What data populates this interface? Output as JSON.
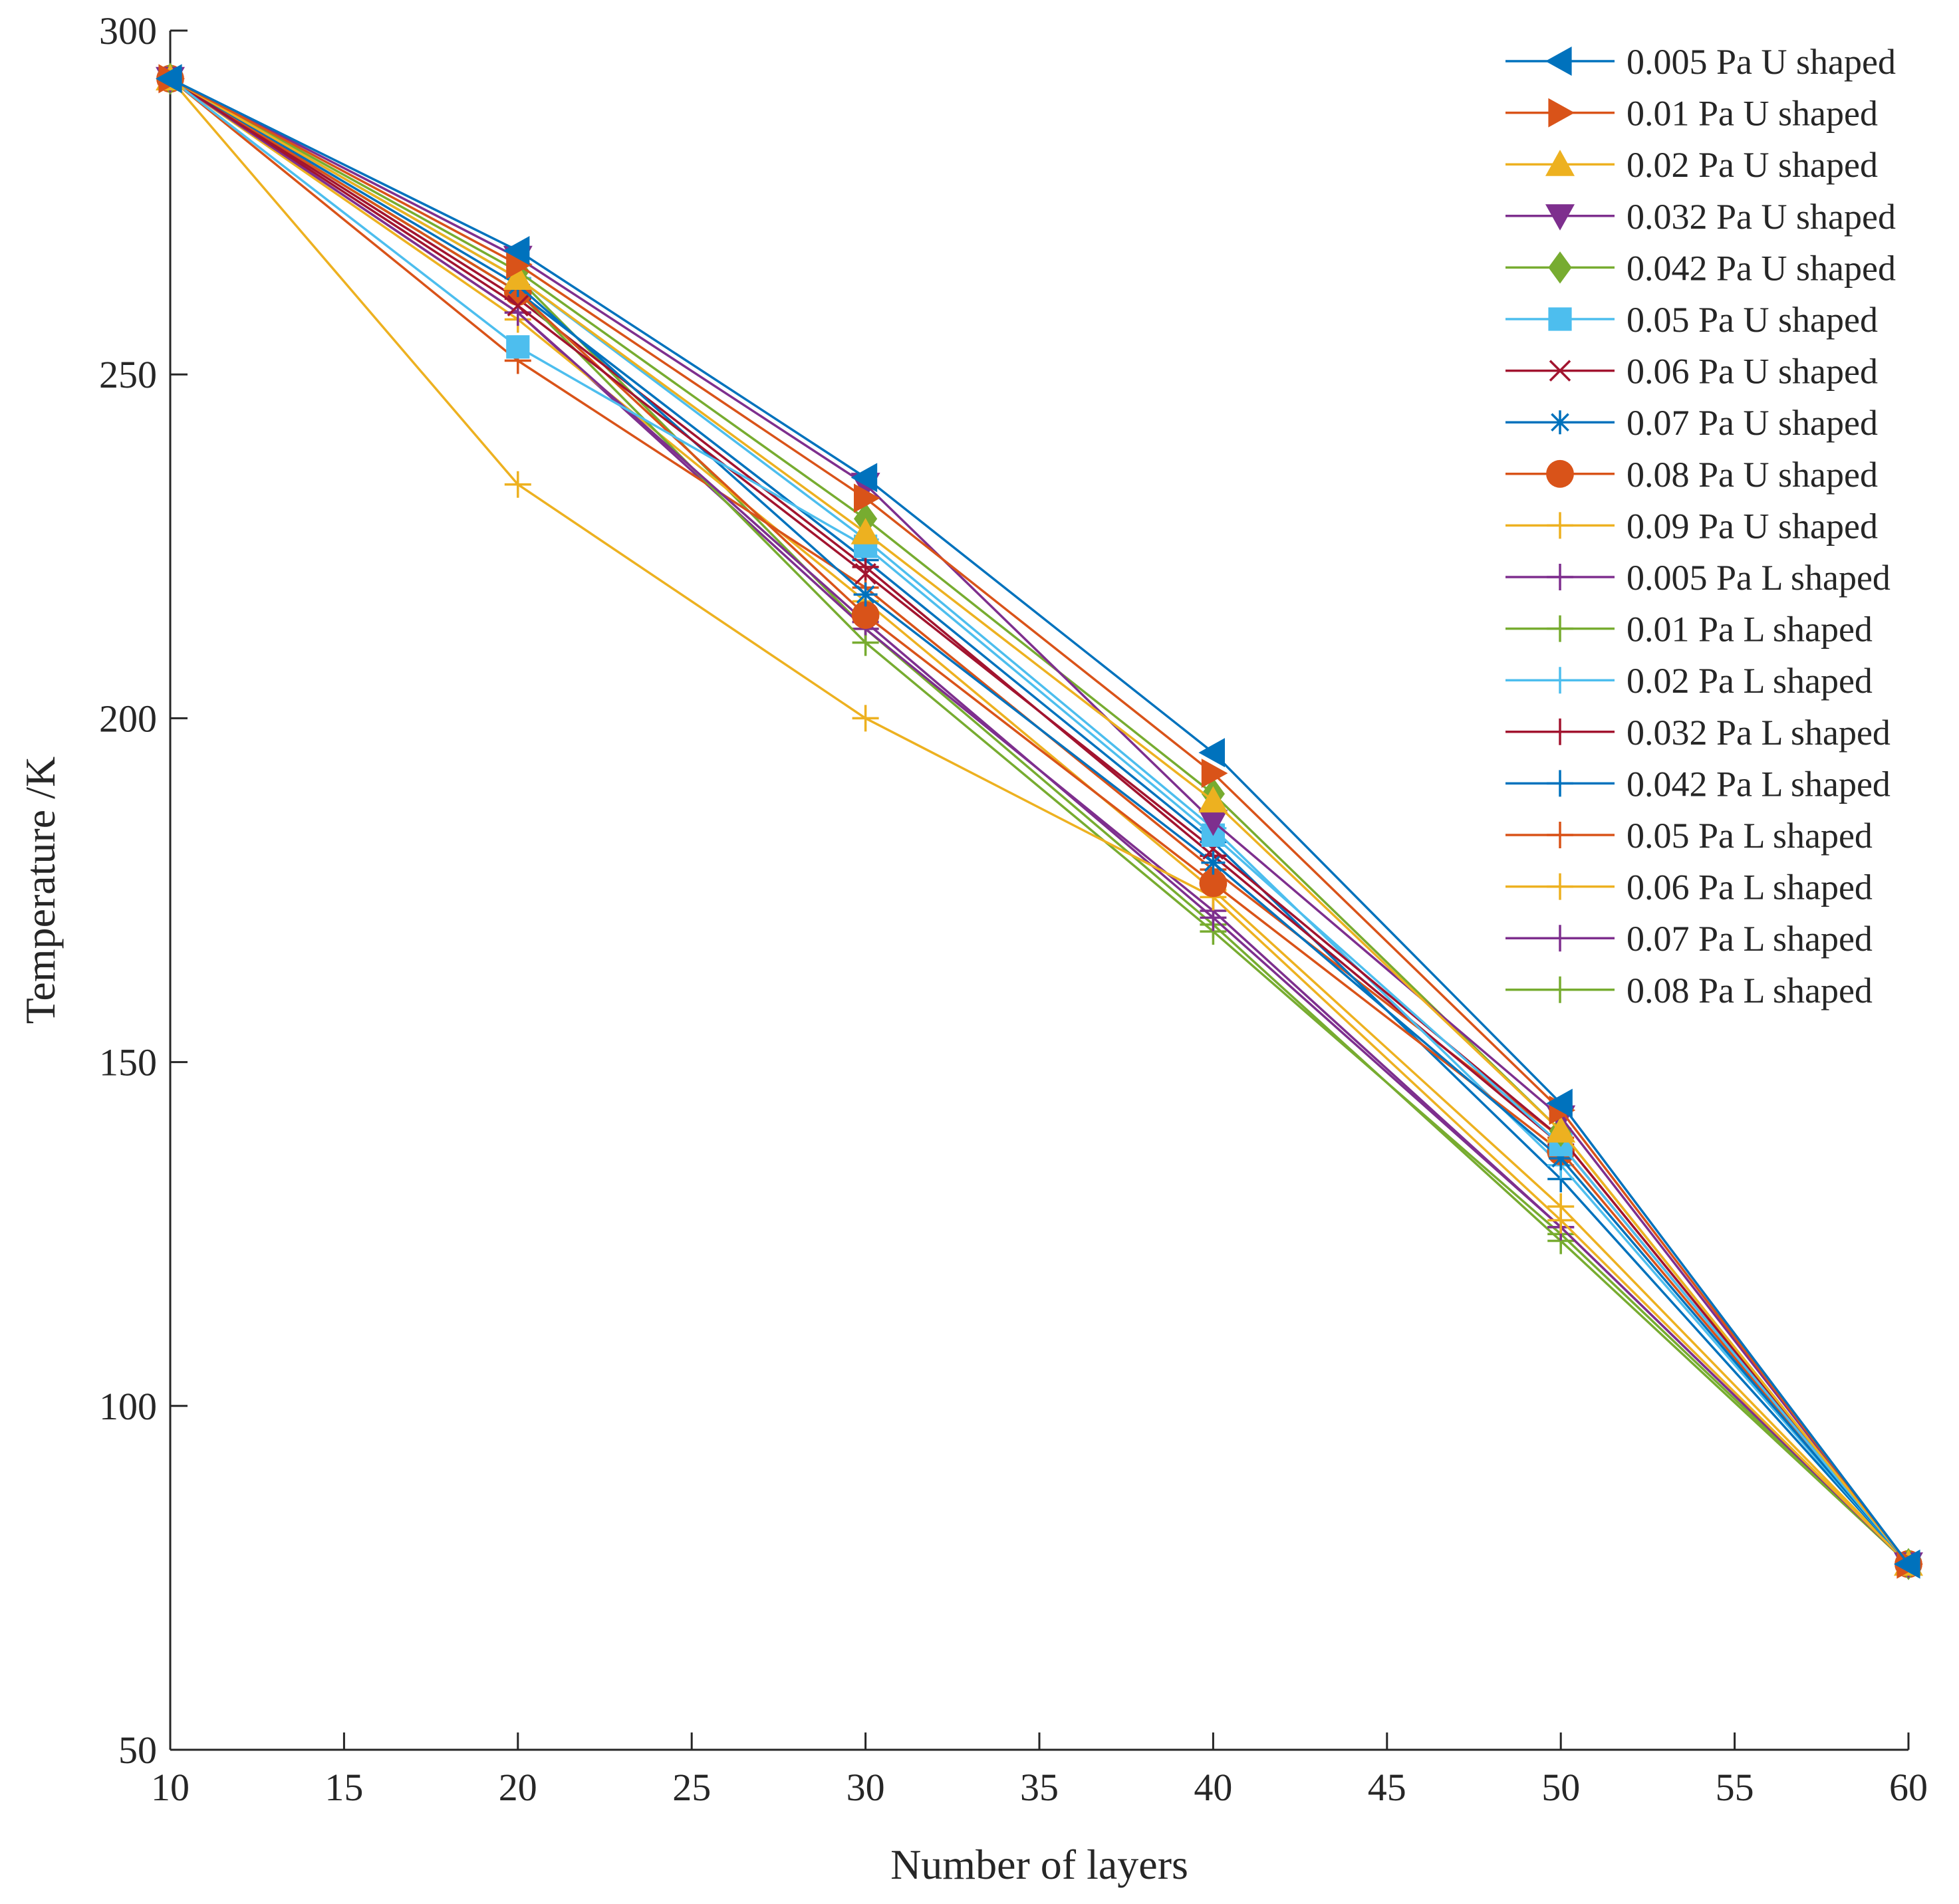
{
  "chart_data": {
    "type": "line",
    "title": "",
    "xlabel": "Number of layers",
    "ylabel": "Temperature /K",
    "xlim": [
      10,
      60
    ],
    "ylim": [
      50,
      300
    ],
    "xticks": [
      10,
      15,
      20,
      25,
      30,
      35,
      40,
      45,
      50,
      55,
      60
    ],
    "yticks": [
      50,
      100,
      150,
      200,
      250,
      300
    ],
    "grid": false,
    "legend_position": "top-right",
    "x": [
      10,
      20,
      30,
      40,
      50,
      60
    ],
    "series": [
      {
        "name": "0.005 Pa U shaped",
        "color": "#0072BD",
        "marker": "triangle-left",
        "values": [
          293,
          268,
          235,
          195,
          144,
          77
        ]
      },
      {
        "name": "0.01 Pa U shaped",
        "color": "#D95319",
        "marker": "triangle-right",
        "values": [
          293,
          266,
          232,
          192,
          143,
          77
        ]
      },
      {
        "name": "0.02 Pa U shaped",
        "color": "#EDB120",
        "marker": "triangle-up",
        "values": [
          293,
          264,
          227,
          188,
          140,
          77
        ]
      },
      {
        "name": "0.032 Pa U shaped",
        "color": "#7E2F8E",
        "marker": "triangle-down",
        "values": [
          293,
          267,
          234,
          185,
          142,
          77
        ]
      },
      {
        "name": "0.042 Pa U shaped",
        "color": "#77AC30",
        "marker": "diamond",
        "values": [
          293,
          265,
          229,
          189,
          140,
          77
        ]
      },
      {
        "name": "0.05 Pa U shaped",
        "color": "#4DBEEE",
        "marker": "square",
        "values": [
          293,
          254,
          225,
          183,
          138,
          77
        ]
      },
      {
        "name": "0.06 Pa U shaped",
        "color": "#A2142F",
        "marker": "x",
        "values": [
          293,
          260,
          221,
          181,
          139,
          77
        ]
      },
      {
        "name": "0.07 Pa U shaped",
        "color": "#0072BD",
        "marker": "asterisk",
        "values": [
          293,
          263,
          218,
          179,
          136,
          77
        ]
      },
      {
        "name": "0.08 Pa U shaped",
        "color": "#D95319",
        "marker": "circle",
        "values": [
          293,
          262,
          215,
          176,
          137,
          77
        ]
      },
      {
        "name": "0.09 Pa U shaped",
        "color": "#EDB120",
        "marker": "plus",
        "values": [
          293,
          234,
          200,
          174,
          127,
          77
        ]
      },
      {
        "name": "0.005 Pa L shaped",
        "color": "#7E2F8E",
        "marker": "plus",
        "values": [
          293,
          259,
          214,
          171,
          126,
          77
        ]
      },
      {
        "name": "0.01 Pa L shaped",
        "color": "#77AC30",
        "marker": "plus",
        "values": [
          293,
          262,
          211,
          169,
          125,
          77
        ]
      },
      {
        "name": "0.02 Pa L shaped",
        "color": "#4DBEEE",
        "marker": "plus",
        "values": [
          293,
          264,
          226,
          184,
          135,
          77
        ]
      },
      {
        "name": "0.032 Pa L shaped",
        "color": "#A2142F",
        "marker": "plus",
        "values": [
          293,
          261,
          222,
          180,
          138,
          77
        ]
      },
      {
        "name": "0.042 Pa L shaped",
        "color": "#0072BD",
        "marker": "plus",
        "values": [
          293,
          262,
          223,
          182,
          133,
          77
        ]
      },
      {
        "name": "0.05 Pa L shaped",
        "color": "#D95319",
        "marker": "plus",
        "values": [
          293,
          252,
          219,
          178,
          139,
          77
        ]
      },
      {
        "name": "0.06 Pa L shaped",
        "color": "#EDB120",
        "marker": "plus",
        "values": [
          293,
          258,
          217,
          175,
          129,
          77
        ]
      },
      {
        "name": "0.07 Pa L shaped",
        "color": "#7E2F8E",
        "marker": "plus",
        "values": [
          293,
          259,
          213,
          172,
          126,
          77
        ]
      },
      {
        "name": "0.08 Pa L shaped",
        "color": "#77AC30",
        "marker": "plus",
        "values": [
          293,
          264,
          213,
          170,
          124,
          77
        ]
      }
    ]
  }
}
